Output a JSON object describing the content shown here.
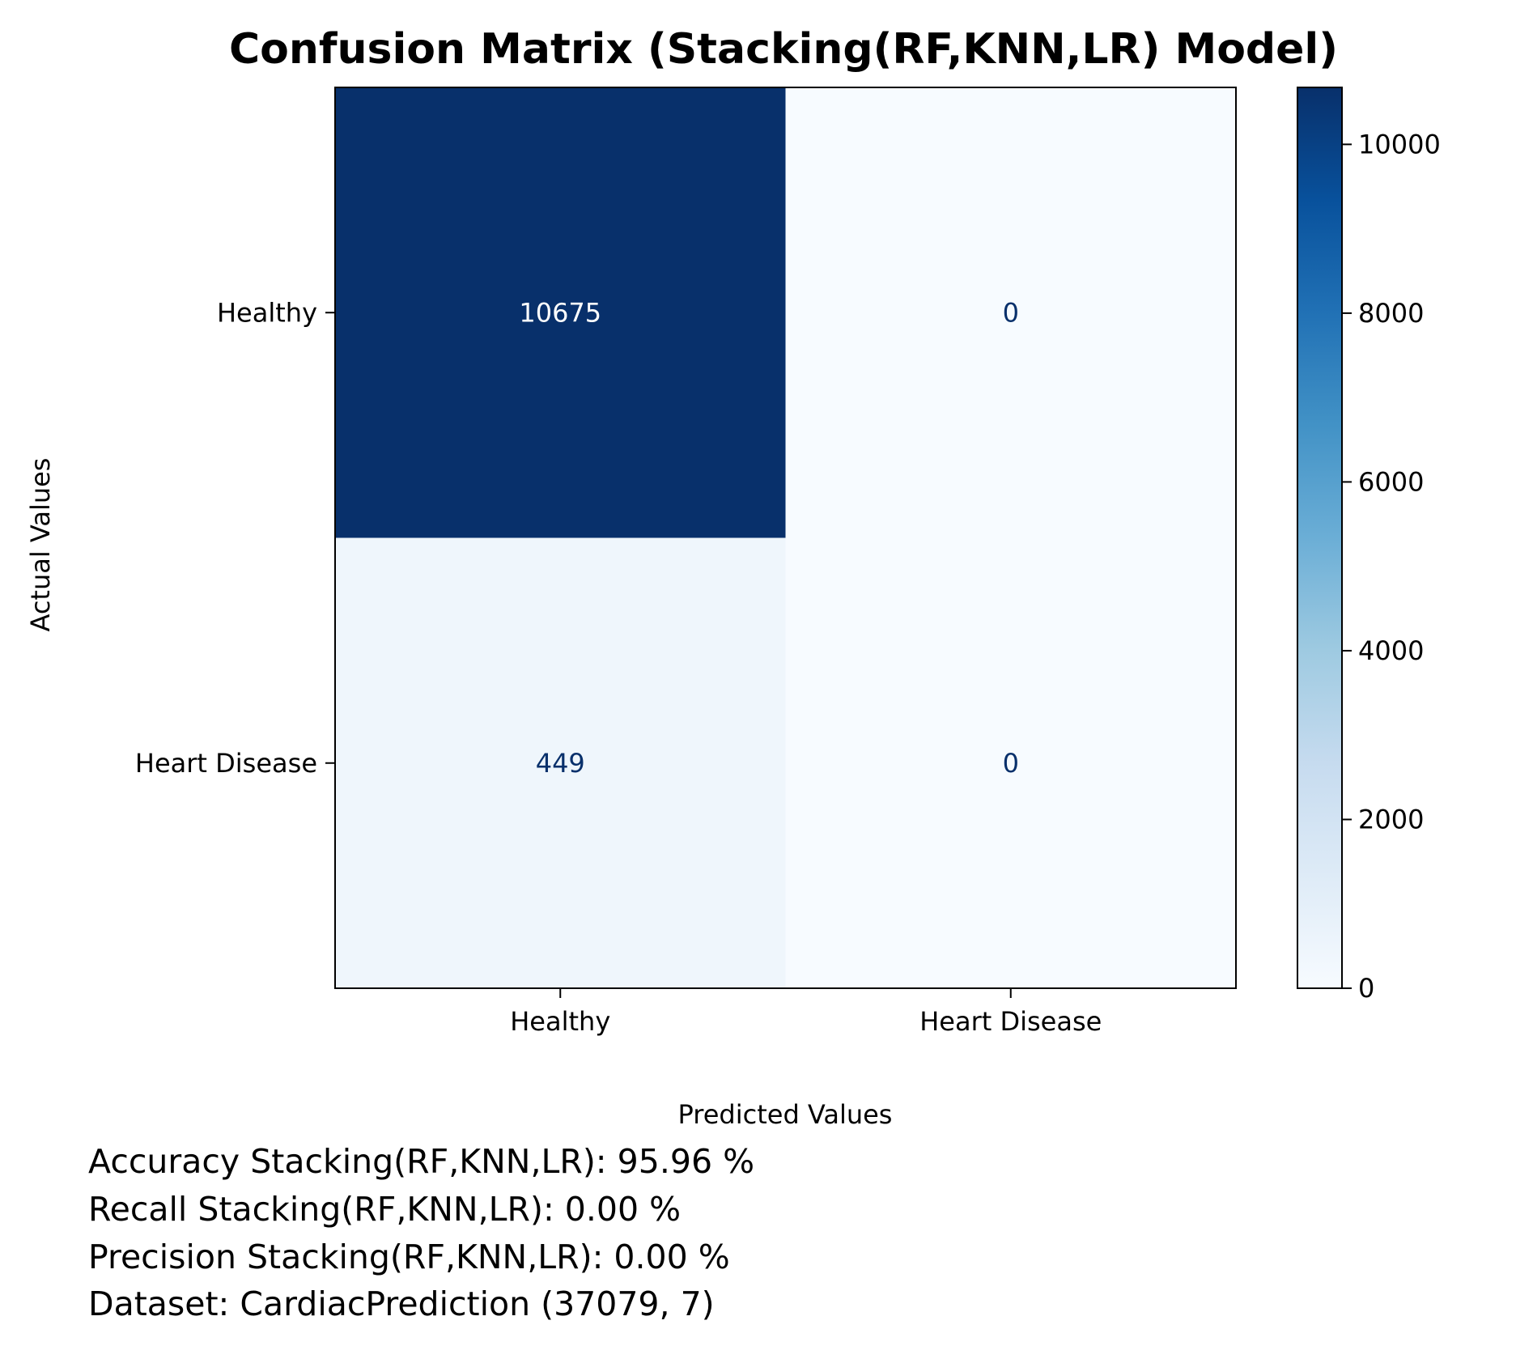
{
  "chart_data": {
    "type": "heatmap",
    "title": "Confusion Matrix (Stacking(RF,KNN,LR) Model)",
    "xlabel": "Predicted Values",
    "ylabel": "Actual Values",
    "x_categories": [
      "Healthy",
      "Heart Disease"
    ],
    "y_categories": [
      "Healthy",
      "Heart Disease"
    ],
    "values": [
      [
        10675,
        0
      ],
      [
        449,
        0
      ]
    ],
    "colormap": "Blues",
    "colorbar": {
      "ticks": [
        0,
        2000,
        4000,
        6000,
        8000,
        10000
      ],
      "range": [
        0,
        10675
      ]
    },
    "annotations": [
      "Accuracy Stacking(RF,KNN,LR): 95.96 %",
      "Recall Stacking(RF,KNN,LR): 0.00 %",
      "Precision Stacking(RF,KNN,LR): 0.00 %",
      "Dataset: CardiacPrediction (37079, 7)"
    ],
    "grid": false
  },
  "colors": {
    "cmap_low": "#f7fbff",
    "cmap_high": "#08306b",
    "text_light": "#ffffff",
    "text_dark": "#08306b",
    "axis": "#000000"
  }
}
